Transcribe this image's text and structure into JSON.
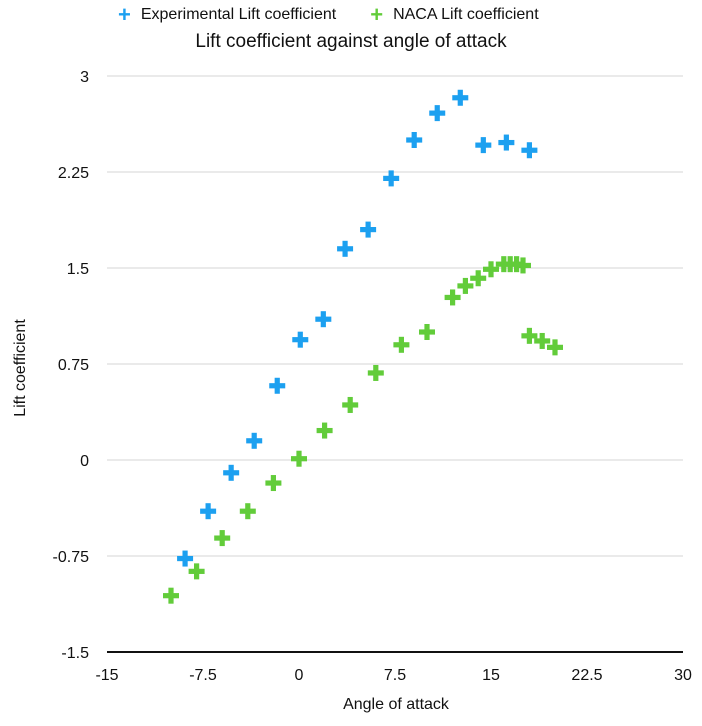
{
  "chart_data": {
    "type": "scatter",
    "title": "Lift coefficient against angle of attack",
    "xlabel": "Angle of attack",
    "ylabel": "Lift coefficient",
    "xlim": [
      -15,
      30
    ],
    "ylim": [
      -1.5,
      3
    ],
    "xticks": [
      "-15",
      "-7.5",
      "0",
      "7.5",
      "15",
      "22.5",
      "30"
    ],
    "yticks": [
      "-1.5",
      "-0.75",
      "0",
      "0.75",
      "1.5",
      "2.25",
      "3"
    ],
    "grid": "horizontal",
    "legend_position": "top",
    "series": [
      {
        "name": "Experimental Lift coefficient",
        "color": "#1ca0f0",
        "x": [
          -8.9,
          -7.1,
          -5.3,
          -3.5,
          -1.7,
          0.1,
          1.9,
          3.6,
          5.4,
          7.2,
          9.0,
          10.8,
          12.6,
          14.4,
          16.2,
          18.0
        ],
        "y": [
          -0.77,
          -0.4,
          -0.1,
          0.15,
          0.58,
          0.94,
          1.1,
          1.65,
          1.8,
          2.2,
          2.5,
          2.71,
          2.83,
          2.46,
          2.48,
          2.42
        ]
      },
      {
        "name": "NACA Lift coefficient",
        "color": "#62cc3a",
        "x": [
          -10.0,
          -8.0,
          -6.0,
          -4.0,
          -2.0,
          0.0,
          2.0,
          4.0,
          6.0,
          8.0,
          10.0,
          12.0,
          13.0,
          14.0,
          15.0,
          16.0,
          16.5,
          17.0,
          17.5,
          18.0,
          19.0,
          20.0
        ],
        "y": [
          -1.06,
          -0.87,
          -0.61,
          -0.4,
          -0.18,
          0.01,
          0.23,
          0.43,
          0.68,
          0.9,
          1.0,
          1.27,
          1.36,
          1.42,
          1.49,
          1.53,
          1.53,
          1.53,
          1.52,
          0.97,
          0.93,
          0.88
        ]
      }
    ]
  }
}
